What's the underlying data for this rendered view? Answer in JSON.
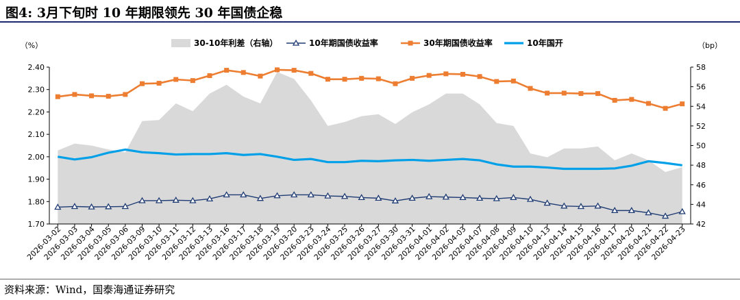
{
  "header": {
    "title": "图4:  3月下旬时 10 年期限领先 30 年国债企稳"
  },
  "footer": {
    "source": "资料来源：Wind，国泰海通证券研究"
  },
  "chart_data": {
    "type": "line",
    "title": "图4:  3月下旬时 10 年期限领先 30 年国债企稳",
    "left_unit": "（%）",
    "right_unit": "（bp）",
    "ylim_left": [
      1.7,
      2.4
    ],
    "yticks_left": [
      "2.40",
      "2.30",
      "2.20",
      "2.10",
      "2.00",
      "1.90",
      "1.80",
      "1.70"
    ],
    "ylim_right": [
      42,
      58
    ],
    "yticks_right": [
      "58",
      "56",
      "54",
      "52",
      "50",
      "48",
      "46",
      "44",
      "42"
    ],
    "legend_position": "top-center",
    "categories": [
      "2026-03-02",
      "2026-03-03",
      "2026-03-04",
      "2026-03-05",
      "2026-03-06",
      "2026-03-09",
      "2026-03-10",
      "2026-03-11",
      "2026-03-12",
      "2026-03-13",
      "2026-03-16",
      "2026-03-17",
      "2026-03-18",
      "2026-03-19",
      "2026-03-20",
      "2026-03-23",
      "2026-03-24",
      "2026-03-25",
      "2026-03-26",
      "2026-03-27",
      "2026-03-30",
      "2026-03-31",
      "2026-04-01",
      "2026-04-02",
      "2026-04-03",
      "2026-04-07",
      "2026-04-08",
      "2026-04-09",
      "2026-04-10",
      "2026-04-13",
      "2026-04-14",
      "2026-04-15",
      "2026-04-16",
      "2026-04-17",
      "2026-04-20",
      "2026-04-21",
      "2026-04-22",
      "2026-04-23"
    ],
    "series": [
      {
        "name": "30-10年利差（右轴）",
        "type": "area",
        "axis": "right",
        "color": "#d9d9d9",
        "values": [
          49.5,
          50.2,
          50.0,
          49.6,
          49.3,
          52.5,
          52.6,
          54.3,
          53.5,
          55.3,
          56.2,
          55.0,
          54.3,
          57.5,
          56.8,
          54.6,
          52.0,
          52.4,
          53.0,
          53.2,
          52.2,
          53.4,
          54.2,
          55.3,
          55.3,
          54.2,
          52.3,
          52.0,
          49.2,
          48.8,
          49.7,
          49.7,
          49.9,
          48.5,
          49.2,
          48.5,
          47.3,
          47.8
        ]
      },
      {
        "name": "10年期国债收益率",
        "type": "line",
        "axis": "left",
        "color": "#1f3b73",
        "marker": "triangle",
        "values": [
          1.775,
          1.778,
          1.776,
          1.777,
          1.778,
          1.804,
          1.804,
          1.806,
          1.804,
          1.812,
          1.83,
          1.83,
          1.814,
          1.826,
          1.83,
          1.83,
          1.825,
          1.823,
          1.818,
          1.815,
          1.803,
          1.815,
          1.822,
          1.82,
          1.818,
          1.815,
          1.813,
          1.818,
          1.81,
          1.793,
          1.78,
          1.778,
          1.78,
          1.76,
          1.76,
          1.75,
          1.735,
          1.755
        ]
      },
      {
        "name": "30年期国债收益率",
        "type": "line",
        "axis": "left",
        "color": "#ed7d31",
        "marker": "square",
        "values": [
          2.268,
          2.278,
          2.272,
          2.27,
          2.278,
          2.326,
          2.328,
          2.345,
          2.34,
          2.362,
          2.386,
          2.376,
          2.36,
          2.388,
          2.386,
          2.372,
          2.346,
          2.346,
          2.35,
          2.348,
          2.326,
          2.35,
          2.363,
          2.37,
          2.368,
          2.358,
          2.336,
          2.338,
          2.305,
          2.284,
          2.284,
          2.282,
          2.282,
          2.252,
          2.256,
          2.238,
          2.216,
          2.236
        ]
      },
      {
        "name": "10年国开",
        "type": "line",
        "axis": "left",
        "color": "#00a0e9",
        "marker": "none",
        "values": [
          2.0,
          1.988,
          1.998,
          2.018,
          2.032,
          2.02,
          2.016,
          2.01,
          2.012,
          2.012,
          2.016,
          2.008,
          2.012,
          2.0,
          1.986,
          1.99,
          1.976,
          1.976,
          1.982,
          1.98,
          1.984,
          1.986,
          1.982,
          1.986,
          1.99,
          1.984,
          1.966,
          1.956,
          1.956,
          1.952,
          1.946,
          1.946,
          1.946,
          1.948,
          1.96,
          1.98,
          1.972,
          1.962
        ]
      }
    ]
  }
}
